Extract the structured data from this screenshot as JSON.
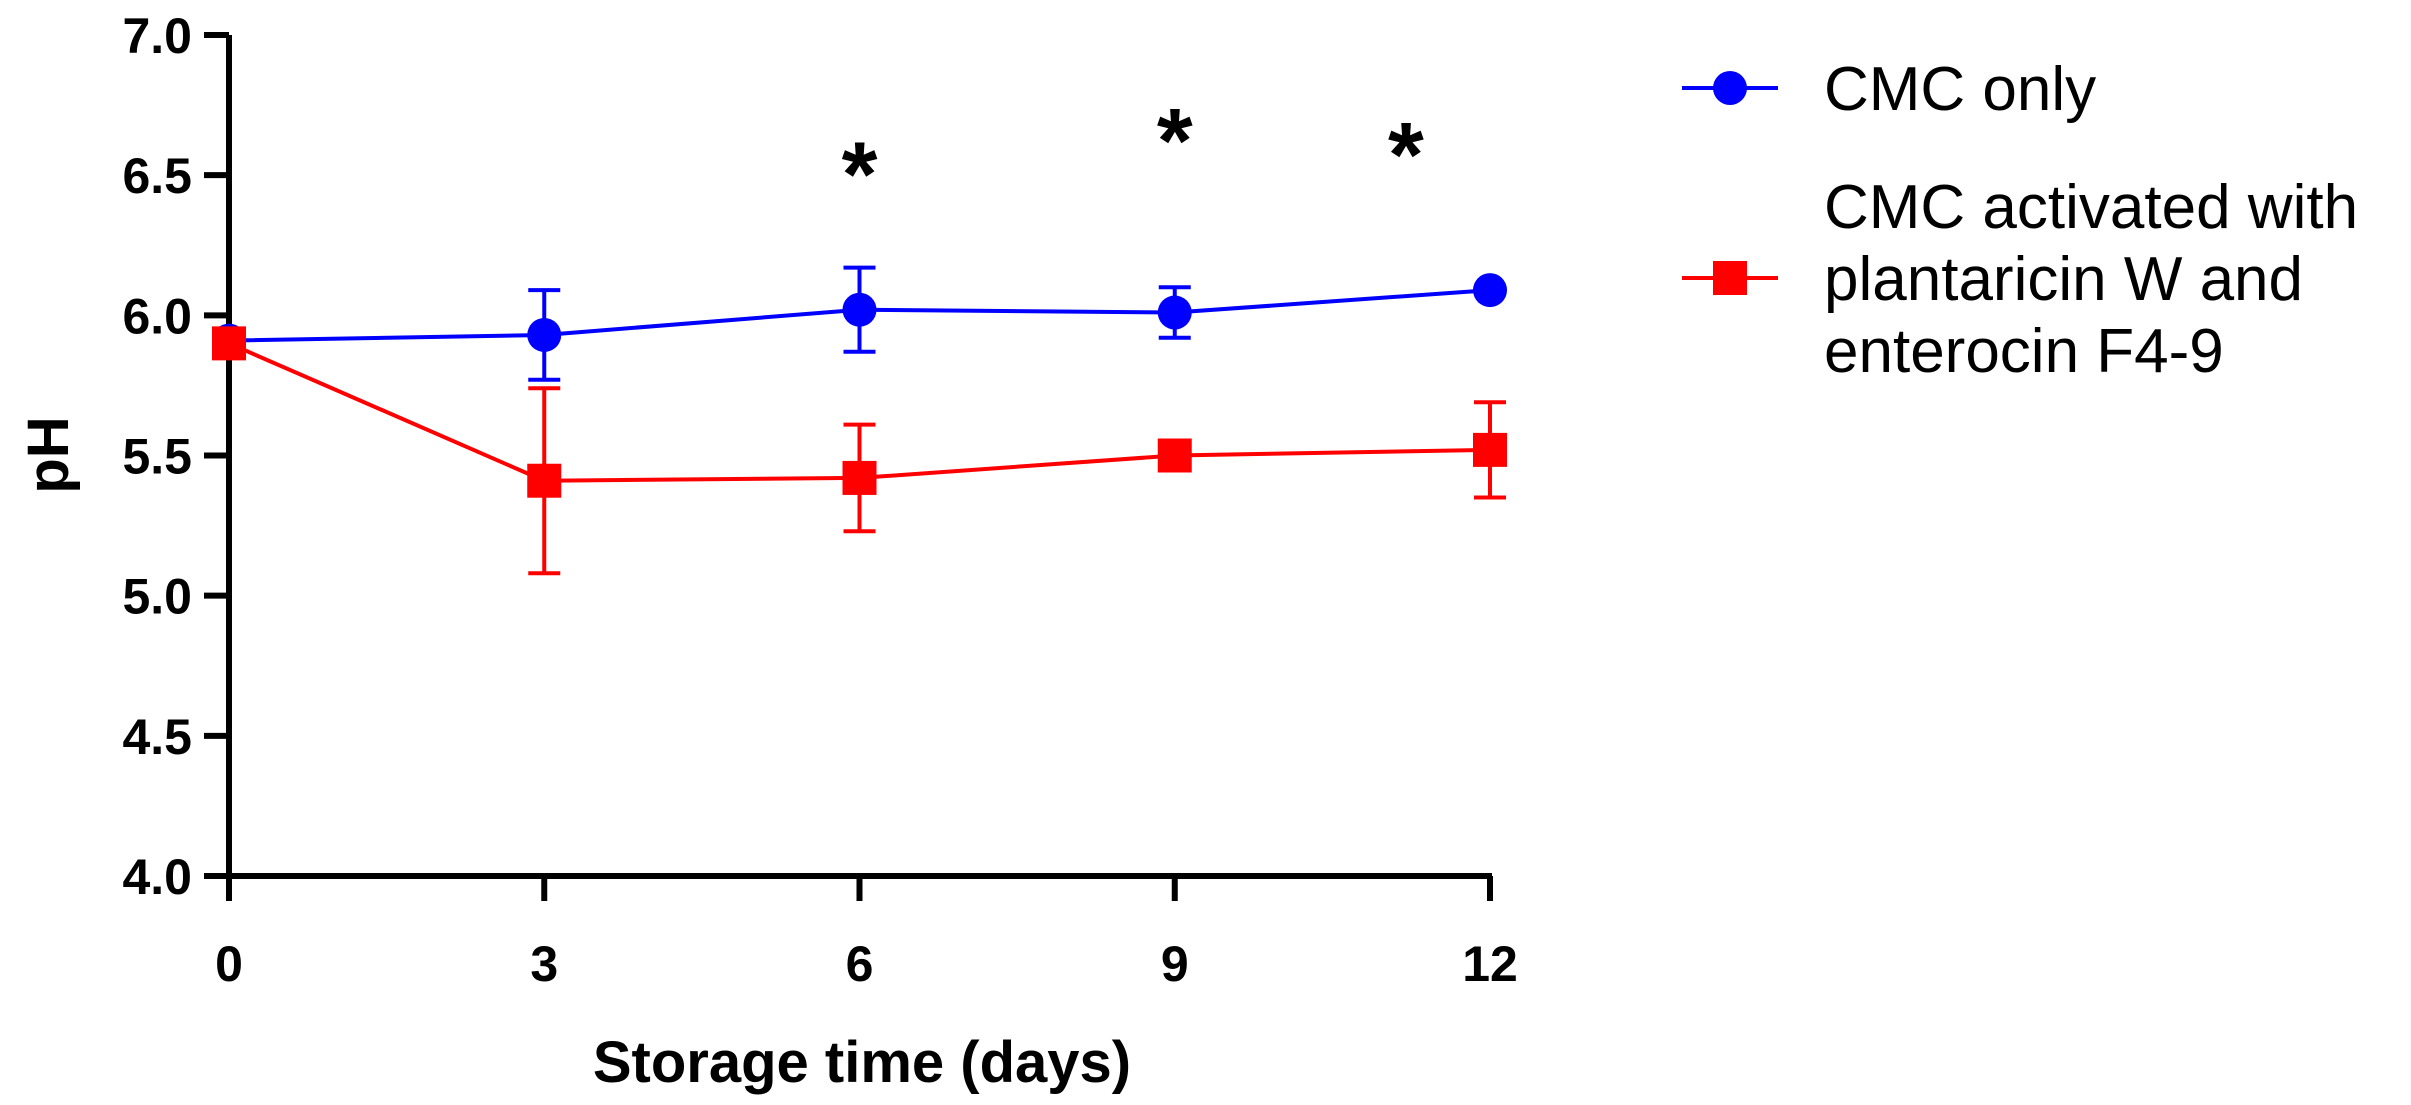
{
  "chart_data": {
    "type": "line",
    "title": "",
    "xlabel": "Storage time (days)",
    "ylabel": "pH",
    "xlim": [
      0,
      12
    ],
    "ylim": [
      4.0,
      7.0
    ],
    "x_ticks": [
      0,
      3,
      6,
      9,
      12
    ],
    "x_tick_labels": [
      "0",
      "3",
      "6",
      "9",
      "12"
    ],
    "y_ticks": [
      4.0,
      4.5,
      5.0,
      5.5,
      6.0,
      6.5,
      7.0
    ],
    "y_tick_labels": [
      "4.0",
      "4.5",
      "5.0",
      "5.5",
      "6.0",
      "6.5",
      "7.0"
    ],
    "grid": false,
    "legend_position": "right",
    "series": [
      {
        "name": "CMC only",
        "legend_lines": [
          "CMC only"
        ],
        "color": "#0000ff",
        "marker": "circle",
        "x": [
          0,
          3,
          6,
          9,
          12
        ],
        "y": [
          5.91,
          5.93,
          6.02,
          6.01,
          6.09
        ],
        "error": [
          0.0,
          0.16,
          0.15,
          0.09,
          0.0
        ]
      },
      {
        "name": "CMC activated with plantaricin W and enterocin F4-9",
        "legend_lines": [
          "CMC activated with",
          "plantaricin W and",
          "enterocin F4-9"
        ],
        "color": "#ff0000",
        "marker": "square",
        "x": [
          0,
          3,
          6,
          9,
          12
        ],
        "y": [
          5.9,
          5.41,
          5.42,
          5.5,
          5.52
        ],
        "error": [
          0.0,
          0.33,
          0.19,
          0.0,
          0.17
        ]
      }
    ],
    "annotations": [
      {
        "text": "*",
        "x": 6,
        "y": 6.55
      },
      {
        "text": "*",
        "x": 9,
        "y": 6.67
      },
      {
        "text": "*",
        "x": 11.2,
        "y": 6.62
      }
    ]
  }
}
